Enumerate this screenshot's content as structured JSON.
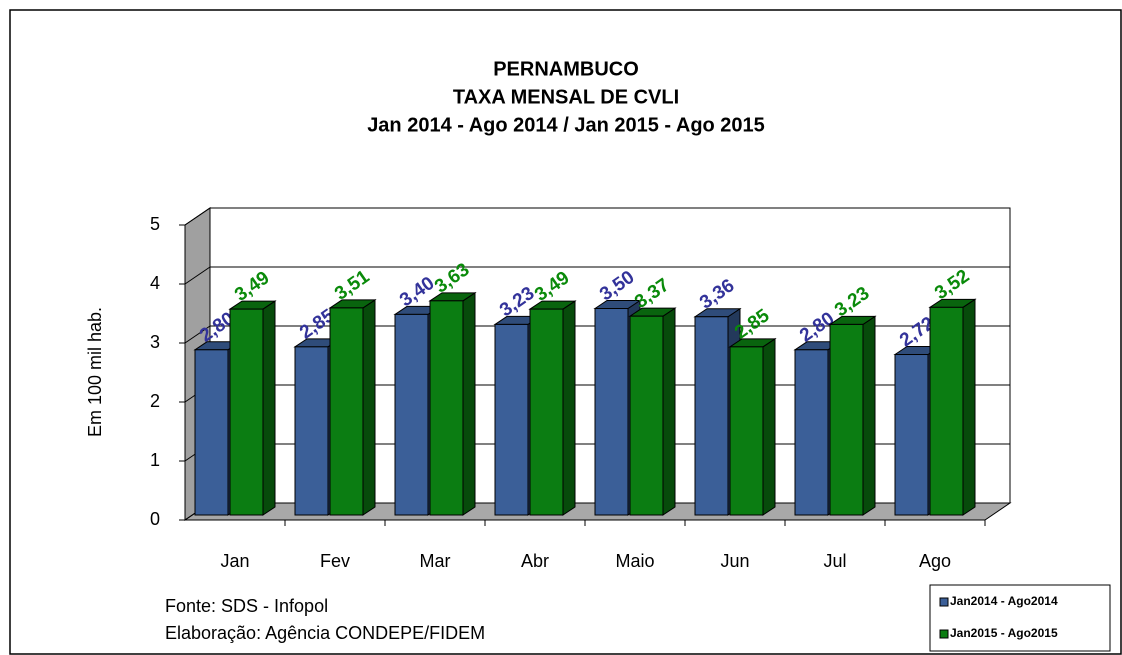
{
  "chart_data": {
    "type": "bar",
    "title": "PERNAMBUCO",
    "subtitle": [
      "TAXA MENSAL DE CVLI",
      "Jan 2014 - Ago 2014  /  Jan 2015 - Ago 2015"
    ],
    "y_label": "Em 100 mil hab.",
    "categories": [
      "Jan",
      "Fev",
      "Mar",
      "Abr",
      "Maio",
      "Jun",
      "Jul",
      "Ago"
    ],
    "series": [
      {
        "name": "Jan2014 - Ago2014",
        "color": "#3b5f98",
        "label_color": "#33339a",
        "values": [
          2.8,
          2.85,
          3.4,
          3.23,
          3.5,
          3.36,
          2.8,
          2.72
        ],
        "value_labels": [
          "2,80",
          "2,85",
          "3,40",
          "3,23",
          "3,50",
          "3,36",
          "2,80",
          "2,72"
        ]
      },
      {
        "name": "Jan2015 - Ago2015",
        "color": "#0b7d12",
        "label_color": "#0a8a0a",
        "values": [
          3.49,
          3.51,
          3.63,
          3.49,
          3.37,
          2.85,
          3.23,
          3.52
        ],
        "value_labels": [
          "3,49",
          "3,51",
          "3,63",
          "3,49",
          "3,37",
          "2,85",
          "3,23",
          "3,52"
        ]
      }
    ],
    "ylim": [
      0,
      5
    ],
    "yticks": [
      0,
      1,
      2,
      3,
      4,
      5
    ],
    "grid": true,
    "legend": "bottom-right",
    "notes": [
      "Fonte: SDS - Infopol",
      "Elaboração: Agência CONDEPE/FIDEM"
    ]
  }
}
